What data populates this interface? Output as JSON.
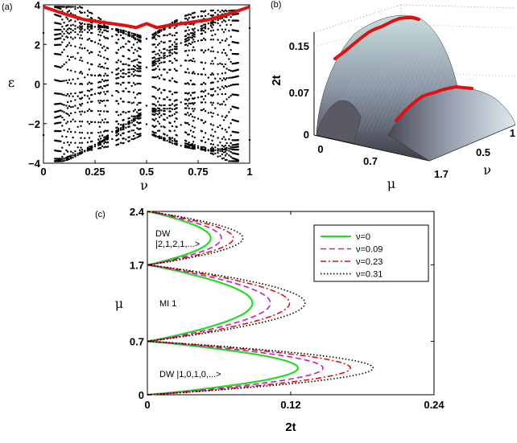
{
  "chart_data": [
    {
      "panel": "(a)",
      "type": "scatter",
      "xlabel": "ν",
      "ylabel": "ε",
      "xlim": [
        0,
        1
      ],
      "ylim": [
        -4,
        4
      ],
      "xticks": [
        "0",
        "0.25",
        "0.5",
        "0.75",
        "1"
      ],
      "yticks": [
        "−4",
        "−2",
        "0",
        "2",
        "4"
      ],
      "highlight_color": "#e01010",
      "highlight_upper_band": [
        [
          0,
          3.9
        ],
        [
          0.1,
          3.55
        ],
        [
          0.2,
          3.25
        ],
        [
          0.3,
          3.1
        ],
        [
          0.4,
          2.95
        ],
        [
          0.45,
          2.85
        ],
        [
          0.5,
          3.05
        ],
        [
          0.55,
          2.85
        ],
        [
          0.6,
          2.95
        ],
        [
          0.7,
          3.1
        ],
        [
          0.8,
          3.25
        ],
        [
          0.9,
          3.55
        ],
        [
          1,
          3.9
        ]
      ]
    },
    {
      "panel": "(b)",
      "type": "surface",
      "xlabel": "μ",
      "ylabel": "ν",
      "zlabel": "2t",
      "mu_ticks": [
        "0",
        "0.7",
        "1.7"
      ],
      "nu_ticks": [
        "0.5",
        "1"
      ],
      "z_ticks": [
        "0",
        "0.07",
        "0.15"
      ],
      "highlight_color": "#e01010"
    },
    {
      "panel": "(c)",
      "type": "line",
      "xlabel": "2t",
      "ylabel": "μ",
      "xlim": [
        0,
        0.24
      ],
      "ylim": [
        0,
        2.4
      ],
      "xticks": [
        "0",
        "0.12",
        "0.24"
      ],
      "yticks": [
        "0",
        "0.7",
        "1.7",
        "2.4"
      ],
      "lobes": [
        {
          "mu_bottom": 0,
          "mu_top": 0.7
        },
        {
          "mu_bottom": 0.7,
          "mu_top": 1.7
        },
        {
          "mu_bottom": 1.7,
          "mu_top": 2.4
        }
      ],
      "series": [
        {
          "name": "ν=0",
          "color": "#22dd22",
          "dash": "solid",
          "tip_2t": [
            0.126,
            0.088,
            0.053
          ]
        },
        {
          "name": "ν=0.09",
          "color": "#c020c0",
          "dash": "dashed",
          "tip_2t": [
            0.147,
            0.103,
            0.062
          ]
        },
        {
          "name": "ν=0.23",
          "color": "#e01010",
          "dash": "dashdot",
          "tip_2t": [
            0.17,
            0.119,
            0.072
          ]
        },
        {
          "name": "ν=0.31",
          "color": "#000000",
          "dash": "dotted",
          "tip_2t": [
            0.189,
            0.132,
            0.08
          ]
        }
      ],
      "annotations": [
        "DW",
        "|2,1,2,1,...>",
        "MI 1",
        "DW |1,0,1,0,...>"
      ]
    }
  ]
}
